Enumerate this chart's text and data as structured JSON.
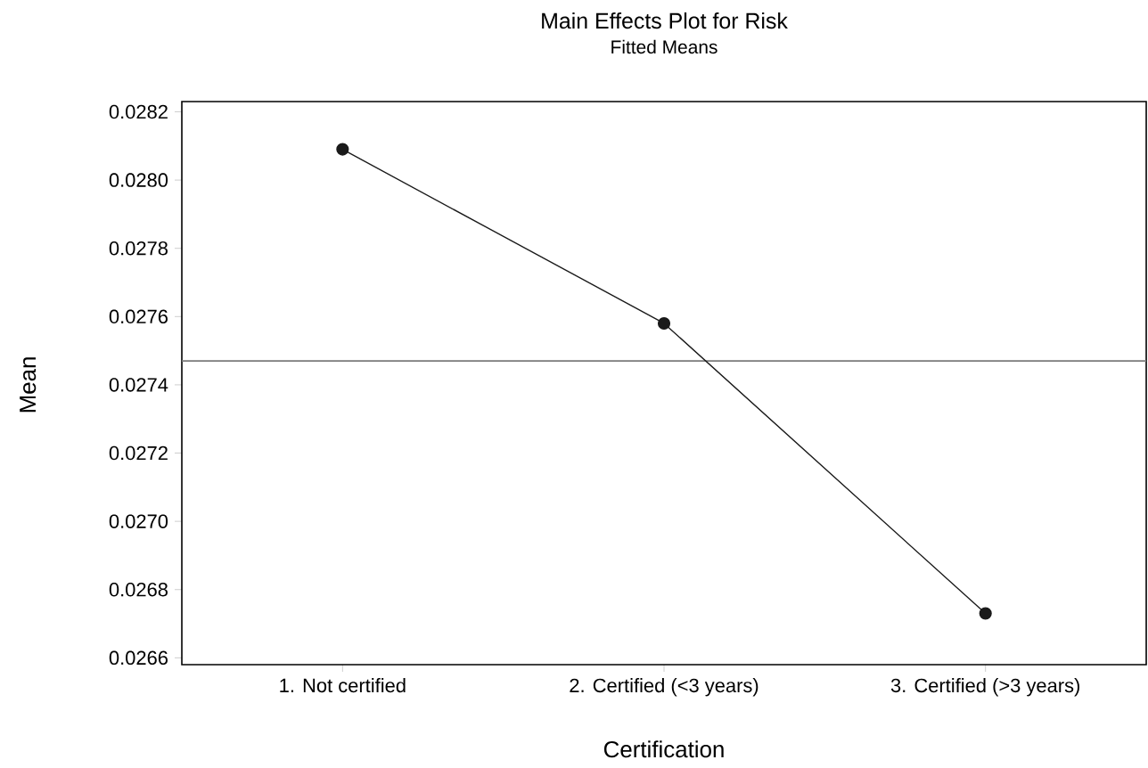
{
  "chart_data": {
    "type": "line",
    "title": "Main Effects Plot for Risk",
    "subtitle": "Fitted Means",
    "xlabel": "Certification",
    "ylabel": "Mean",
    "categories": [
      "1. Not certified",
      "2. Certified (<3 years)",
      "3. Certified (>3 years)"
    ],
    "values": [
      0.02809,
      0.02758,
      0.02673
    ],
    "color": "#1a1a1a",
    "marker": "circle",
    "line_style": "solid",
    "ylim": [
      0.02658,
      0.02823
    ],
    "yticks": [
      0.0266,
      0.0268,
      {
        "value": 0.027,
        "label": "0.0270"
      },
      0.0272,
      0.0274,
      0.0276,
      0.0278,
      {
        "value": 0.028,
        "label": "0.0280"
      },
      0.0282
    ],
    "ref_lines": [
      {
        "axis": "y",
        "value": 0.02747,
        "color": "#7a7a7a"
      }
    ],
    "grid": false
  }
}
